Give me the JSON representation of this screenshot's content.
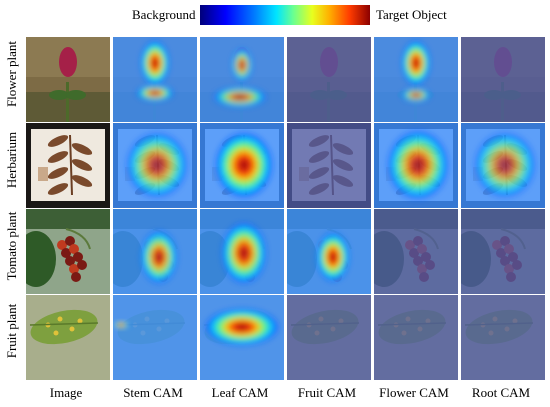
{
  "legend": {
    "low_label": "Background",
    "high_label": "Target Object",
    "colormap": [
      "#00007a",
      "#0000ff",
      "#007bff",
      "#00e5ff",
      "#6bff8f",
      "#e8ff1f",
      "#ffb000",
      "#ff3c00",
      "#8b0000"
    ]
  },
  "rows": [
    "Flower plant",
    "Herbarium",
    "Tomato plant",
    "Fruit plant"
  ],
  "columns": [
    "Image",
    "Stem CAM",
    "Leaf CAM",
    "Fruit CAM",
    "Flower CAM",
    "Root CAM"
  ]
}
